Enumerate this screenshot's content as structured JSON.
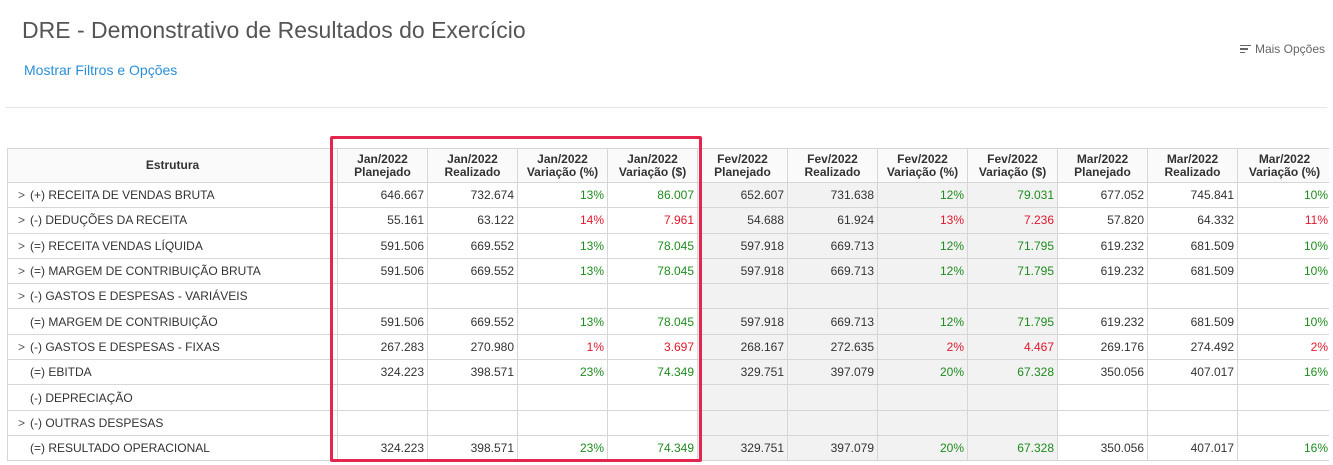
{
  "header": {
    "title": "DRE - Demonstrativo de Resultados do Exercício",
    "filters_link": "Mostrar Filtros e Opções",
    "more_options": "Mais Opções"
  },
  "table": {
    "structure_header": "Estrutura",
    "columns": [
      {
        "month": "Jan/2022",
        "kind": "Planejado"
      },
      {
        "month": "Jan/2022",
        "kind": "Realizado"
      },
      {
        "month": "Jan/2022",
        "kind": "Variação (%)"
      },
      {
        "month": "Jan/2022",
        "kind": "Variação ($)"
      },
      {
        "month": "Fev/2022",
        "kind": "Planejado"
      },
      {
        "month": "Fev/2022",
        "kind": "Realizado"
      },
      {
        "month": "Fev/2022",
        "kind": "Variação (%)"
      },
      {
        "month": "Fev/2022",
        "kind": "Variação ($)"
      },
      {
        "month": "Mar/2022",
        "kind": "Planejado"
      },
      {
        "month": "Mar/2022",
        "kind": "Realizado"
      },
      {
        "month": "Mar/2022",
        "kind": "Variação (%)"
      }
    ],
    "rows": [
      {
        "label": "(+) RECEITA DE VENDAS BRUTA",
        "expandable": true,
        "values": [
          "646.667",
          "732.674",
          "13%",
          "86.007",
          "652.607",
          "731.638",
          "12%",
          "79.031",
          "677.052",
          "745.841",
          "10%"
        ],
        "trend": "pos"
      },
      {
        "label": "(-) DEDUÇÕES DA RECEITA",
        "expandable": true,
        "values": [
          "55.161",
          "63.122",
          "14%",
          "7.961",
          "54.688",
          "61.924",
          "13%",
          "7.236",
          "57.820",
          "64.332",
          "11%"
        ],
        "trend": "neg"
      },
      {
        "label": "(=) RECEITA VENDAS LÍQUIDA",
        "expandable": true,
        "values": [
          "591.506",
          "669.552",
          "13%",
          "78.045",
          "597.918",
          "669.713",
          "12%",
          "71.795",
          "619.232",
          "681.509",
          "10%"
        ],
        "trend": "pos"
      },
      {
        "label": "(=) MARGEM DE CONTRIBUIÇÃO BRUTA",
        "expandable": true,
        "values": [
          "591.506",
          "669.552",
          "13%",
          "78.045",
          "597.918",
          "669.713",
          "12%",
          "71.795",
          "619.232",
          "681.509",
          "10%"
        ],
        "trend": "pos"
      },
      {
        "label": "(-) GASTOS E DESPESAS - VARIÁVEIS",
        "expandable": true,
        "values": [
          "",
          "",
          "",
          "",
          "",
          "",
          "",
          "",
          "",
          "",
          ""
        ],
        "trend": "pos"
      },
      {
        "label": "(=) MARGEM DE CONTRIBUIÇÃO",
        "expandable": false,
        "values": [
          "591.506",
          "669.552",
          "13%",
          "78.045",
          "597.918",
          "669.713",
          "12%",
          "71.795",
          "619.232",
          "681.509",
          "10%"
        ],
        "trend": "pos"
      },
      {
        "label": "(-) GASTOS E DESPESAS - FIXAS",
        "expandable": true,
        "values": [
          "267.283",
          "270.980",
          "1%",
          "3.697",
          "268.167",
          "272.635",
          "2%",
          "4.467",
          "269.176",
          "274.492",
          "2%"
        ],
        "trend": "neg"
      },
      {
        "label": "(=) EBITDA",
        "expandable": false,
        "values": [
          "324.223",
          "398.571",
          "23%",
          "74.349",
          "329.751",
          "397.079",
          "20%",
          "67.328",
          "350.056",
          "407.017",
          "16%"
        ],
        "trend": "pos"
      },
      {
        "label": "(-) DEPRECIAÇÃO",
        "expandable": false,
        "values": [
          "",
          "",
          "",
          "",
          "",
          "",
          "",
          "",
          "",
          "",
          ""
        ],
        "trend": "pos"
      },
      {
        "label": "(-) OUTRAS DESPESAS",
        "expandable": true,
        "values": [
          "",
          "",
          "",
          "",
          "",
          "",
          "",
          "",
          "",
          "",
          ""
        ],
        "trend": "pos"
      },
      {
        "label": "(=) RESULTADO OPERACIONAL",
        "expandable": false,
        "values": [
          "324.223",
          "398.571",
          "23%",
          "74.349",
          "329.751",
          "397.079",
          "20%",
          "67.328",
          "350.056",
          "407.017",
          "16%"
        ],
        "trend": "pos"
      }
    ]
  },
  "colors": {
    "positive": "#1e8c1e",
    "negative": "#e0182d",
    "highlight": "#e4264f",
    "link": "#2a8fd8"
  },
  "icons": {
    "expand": "chevron-right-icon",
    "more_options": "menu-lines-icon"
  }
}
